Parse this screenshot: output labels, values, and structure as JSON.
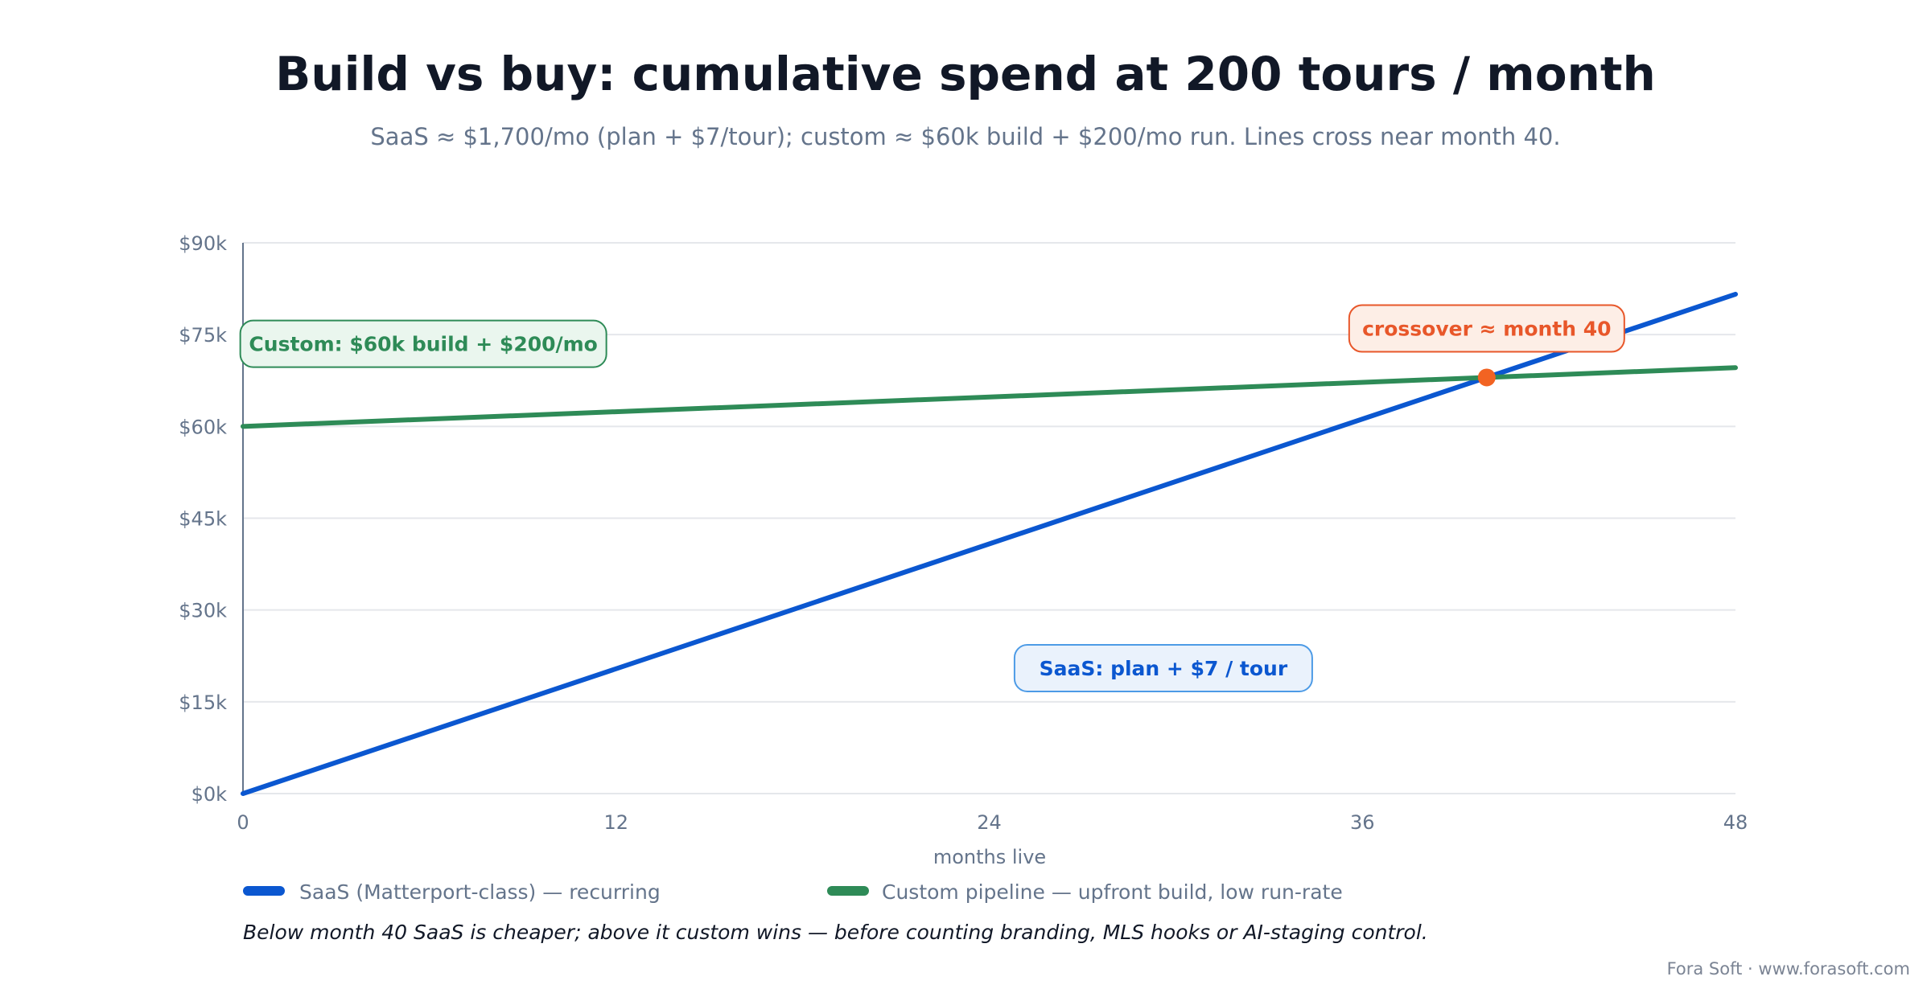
{
  "chart_data": {
    "type": "line",
    "title": "Build vs buy: cumulative spend at 200 tours / month",
    "subtitle": "SaaS ≈ $1,700/mo (plan + $7/tour); custom ≈ $60k build + $200/mo run. Lines cross near month 40.",
    "xlabel": "months live",
    "ylabel": "",
    "xlim": [
      0,
      48
    ],
    "ylim": [
      0,
      90000
    ],
    "x_ticks": [
      0,
      12,
      24,
      36,
      48
    ],
    "x_tick_labels": [
      "0",
      "12",
      "24",
      "36",
      "48"
    ],
    "y_ticks": [
      0,
      15000,
      30000,
      45000,
      60000,
      75000,
      90000
    ],
    "y_tick_labels": [
      "$0k",
      "$15k",
      "$30k",
      "$45k",
      "$60k",
      "$75k",
      "$90k"
    ],
    "grid": "horizontal",
    "legend_position": "bottom",
    "series": [
      {
        "name": "SaaS (Matterport-class) — recurring",
        "color": "#0b57d0",
        "x": [
          0,
          48
        ],
        "y": [
          0,
          81600
        ]
      },
      {
        "name": "Custom pipeline — upfront build, low run-rate",
        "color": "#2e8b57",
        "x": [
          0,
          48
        ],
        "y": [
          60000,
          69600
        ]
      }
    ],
    "annotations": [
      {
        "text": "Custom: $60k build + $200/mo",
        "series": 1,
        "style": "green-box"
      },
      {
        "text": "SaaS: plan + $7 / tour",
        "series": 0,
        "style": "blue-box"
      },
      {
        "text": "crossover ≈ month 40",
        "x": 40,
        "y": 68000,
        "style": "orange-box",
        "marker_color": "#f26322"
      }
    ],
    "note": "Below month 40 SaaS is cheaper; above it custom wins — before counting branding, MLS hooks or AI-staging control."
  },
  "credit": "Fora Soft · www.forasoft.com"
}
